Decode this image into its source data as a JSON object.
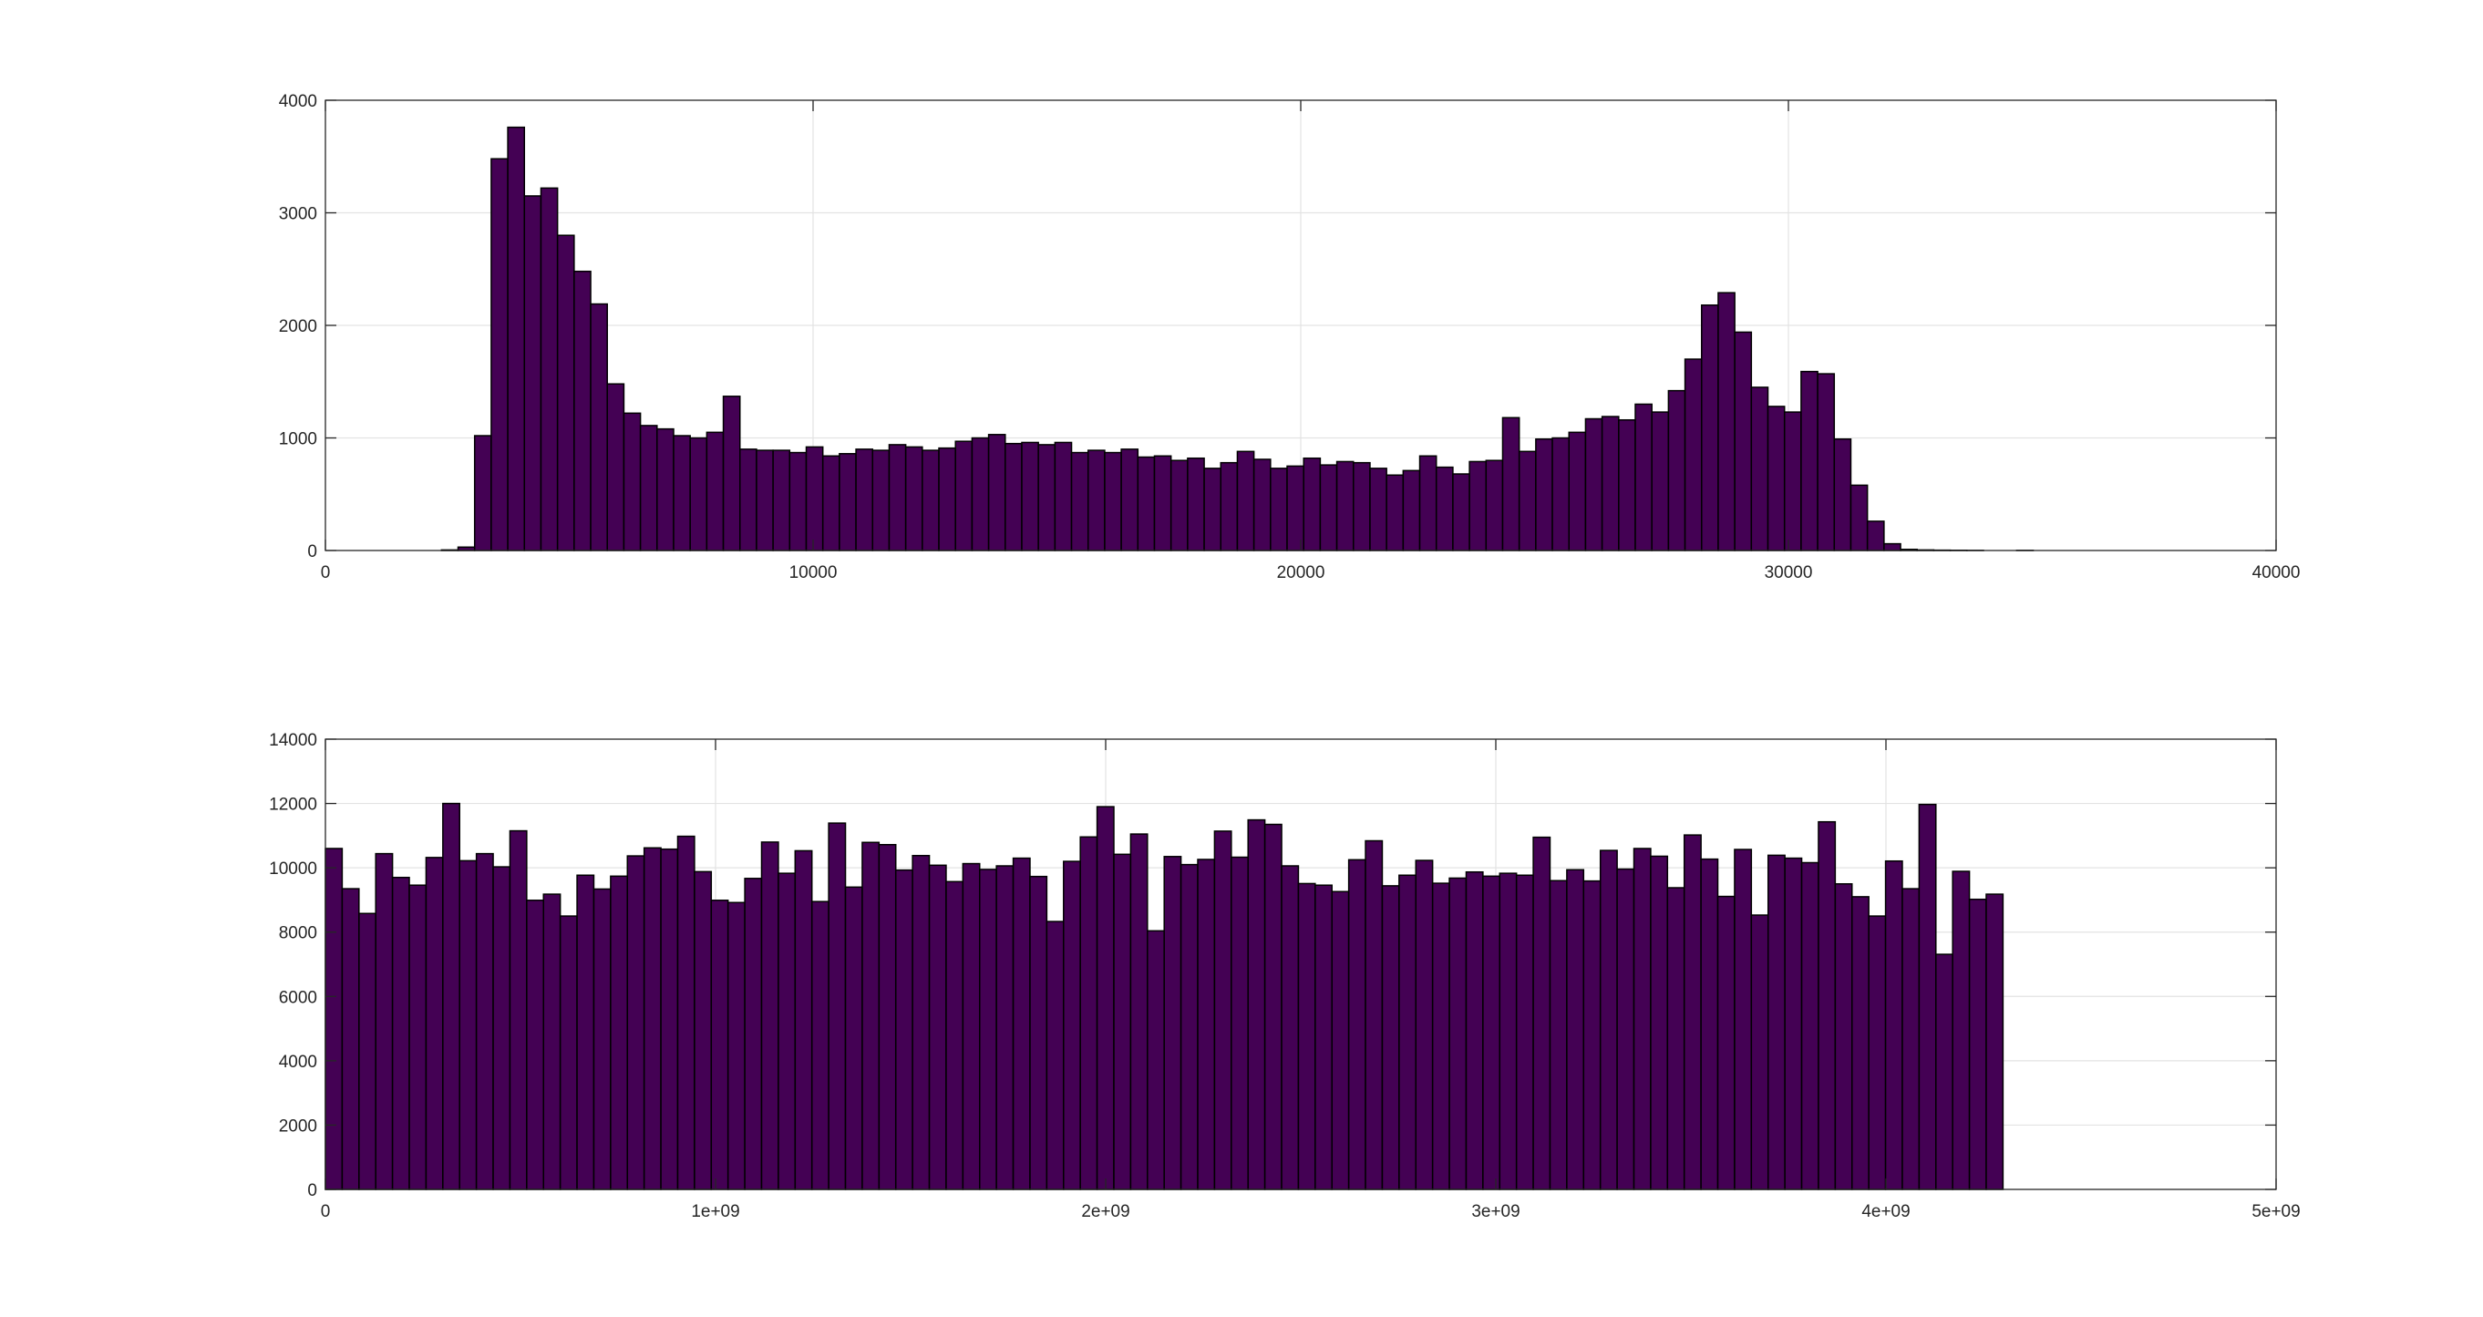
{
  "colors": {
    "bar_fill": "#440154",
    "bar_edge": "#000000",
    "grid": "#e3e3e3",
    "axis": "#262626"
  },
  "chart_data": [
    {
      "type": "bar",
      "title": "",
      "xlabel": "",
      "ylabel": "",
      "grid": true,
      "xlim": [
        0,
        40000
      ],
      "ylim": [
        0,
        4000
      ],
      "xticks": [
        0,
        10000,
        20000,
        30000,
        40000
      ],
      "xtick_labels": [
        "0",
        "10000",
        "20000",
        "30000",
        "40000"
      ],
      "yticks": [
        0,
        1000,
        2000,
        3000,
        4000
      ],
      "ytick_labels": [
        "0",
        "1000",
        "2000",
        "3000",
        "4000"
      ],
      "bin_start": 0,
      "bin_width": 340,
      "values": [
        0,
        0,
        0,
        0,
        0,
        0,
        0,
        5,
        30,
        1020,
        3480,
        3760,
        3150,
        3220,
        2800,
        2480,
        2190,
        1480,
        1220,
        1110,
        1080,
        1020,
        1000,
        1050,
        1370,
        900,
        890,
        890,
        870,
        920,
        840,
        860,
        900,
        890,
        940,
        920,
        890,
        910,
        970,
        1000,
        1030,
        950,
        960,
        940,
        960,
        870,
        890,
        870,
        900,
        830,
        840,
        800,
        820,
        730,
        780,
        880,
        810,
        730,
        750,
        820,
        760,
        790,
        780,
        730,
        670,
        710,
        840,
        740,
        680,
        790,
        800,
        1180,
        880,
        990,
        1000,
        1050,
        1170,
        1190,
        1160,
        1300,
        1230,
        1420,
        1700,
        2180,
        2290,
        1940,
        1450,
        1280,
        1230,
        1590,
        1570,
        990,
        580,
        260,
        60,
        10,
        5,
        3,
        2,
        1,
        0,
        0,
        1,
        0,
        0,
        0,
        0,
        0,
        0,
        0,
        0,
        0,
        0,
        0,
        0,
        0,
        0,
        0,
        0
      ]
    },
    {
      "type": "bar",
      "title": "",
      "xlabel": "",
      "ylabel": "",
      "grid": true,
      "xlim": [
        0,
        5000000000
      ],
      "ylim": [
        0,
        14000
      ],
      "xticks": [
        0,
        1000000000,
        2000000000,
        3000000000,
        4000000000,
        5000000000
      ],
      "xtick_labels": [
        "0",
        "1e+09",
        "2e+09",
        "3e+09",
        "4e+09",
        "5e+09"
      ],
      "yticks": [
        0,
        2000,
        4000,
        6000,
        8000,
        10000,
        12000,
        14000
      ],
      "ytick_labels": [
        "0",
        "2000",
        "4000",
        "6000",
        "8000",
        "10000",
        "12000",
        "14000"
      ],
      "bin_start": 0,
      "bin_width": 43000000,
      "values": [
        10600,
        9350,
        8580,
        10440,
        9700,
        9460,
        10320,
        12000,
        10220,
        10440,
        10030,
        11150,
        8990,
        9180,
        8500,
        9770,
        9340,
        9740,
        10370,
        10620,
        10580,
        10980,
        9880,
        8990,
        8920,
        9670,
        10800,
        9830,
        10530,
        8950,
        11390,
        9400,
        10790,
        10720,
        9930,
        10380,
        10080,
        9570,
        10130,
        9950,
        10060,
        10300,
        9730,
        8330,
        10200,
        10960,
        11900,
        10420,
        11050,
        8040,
        10350,
        10100,
        10260,
        11140,
        10330,
        11490,
        11350,
        10060,
        9510,
        9460,
        9260,
        10250,
        10840,
        9440,
        9770,
        10230,
        9520,
        9680,
        9870,
        9740,
        9830,
        9770,
        10950,
        9600,
        9940,
        9590,
        10540,
        9960,
        10600,
        10360,
        9380,
        11020,
        10270,
        9110,
        10570,
        8530,
        10390,
        10300,
        10160,
        11430,
        9500,
        9100,
        8500,
        10210,
        9350,
        11970,
        7310,
        9890,
        9020,
        9180
      ]
    }
  ]
}
